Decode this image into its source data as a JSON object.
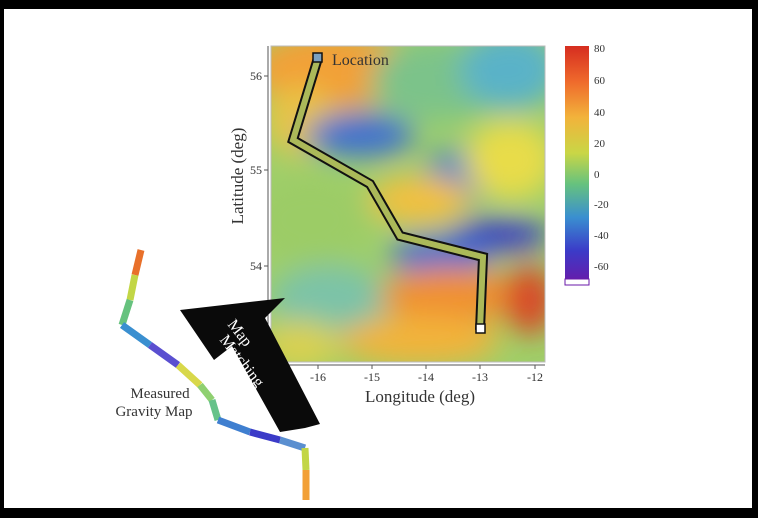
{
  "figure": {
    "ylabel": "Latitude (deg)",
    "xlabel": "Longitude (deg)",
    "y_ticks": [
      "56",
      "55",
      "54"
    ],
    "x_ticks": [
      "-16",
      "-15",
      "-14",
      "-13",
      "-12"
    ],
    "colorbar_ticks": [
      "80",
      "60",
      "40",
      "20",
      "0",
      "-20",
      "-40",
      "-60"
    ],
    "start_label": "Location",
    "arrow_label_line1": "Map",
    "arrow_label_line2": "Matching",
    "measured_label_line1": "Measured",
    "measured_label_line2": "Gravity Map"
  },
  "colors": {
    "high": "#d62d20",
    "mid_high": "#f2a037",
    "mid": "#e8dc4a",
    "zero": "#7cc36f",
    "low": "#3f8fcf",
    "very_low": "#3b3bc8",
    "min": "#6a1aa8"
  }
}
